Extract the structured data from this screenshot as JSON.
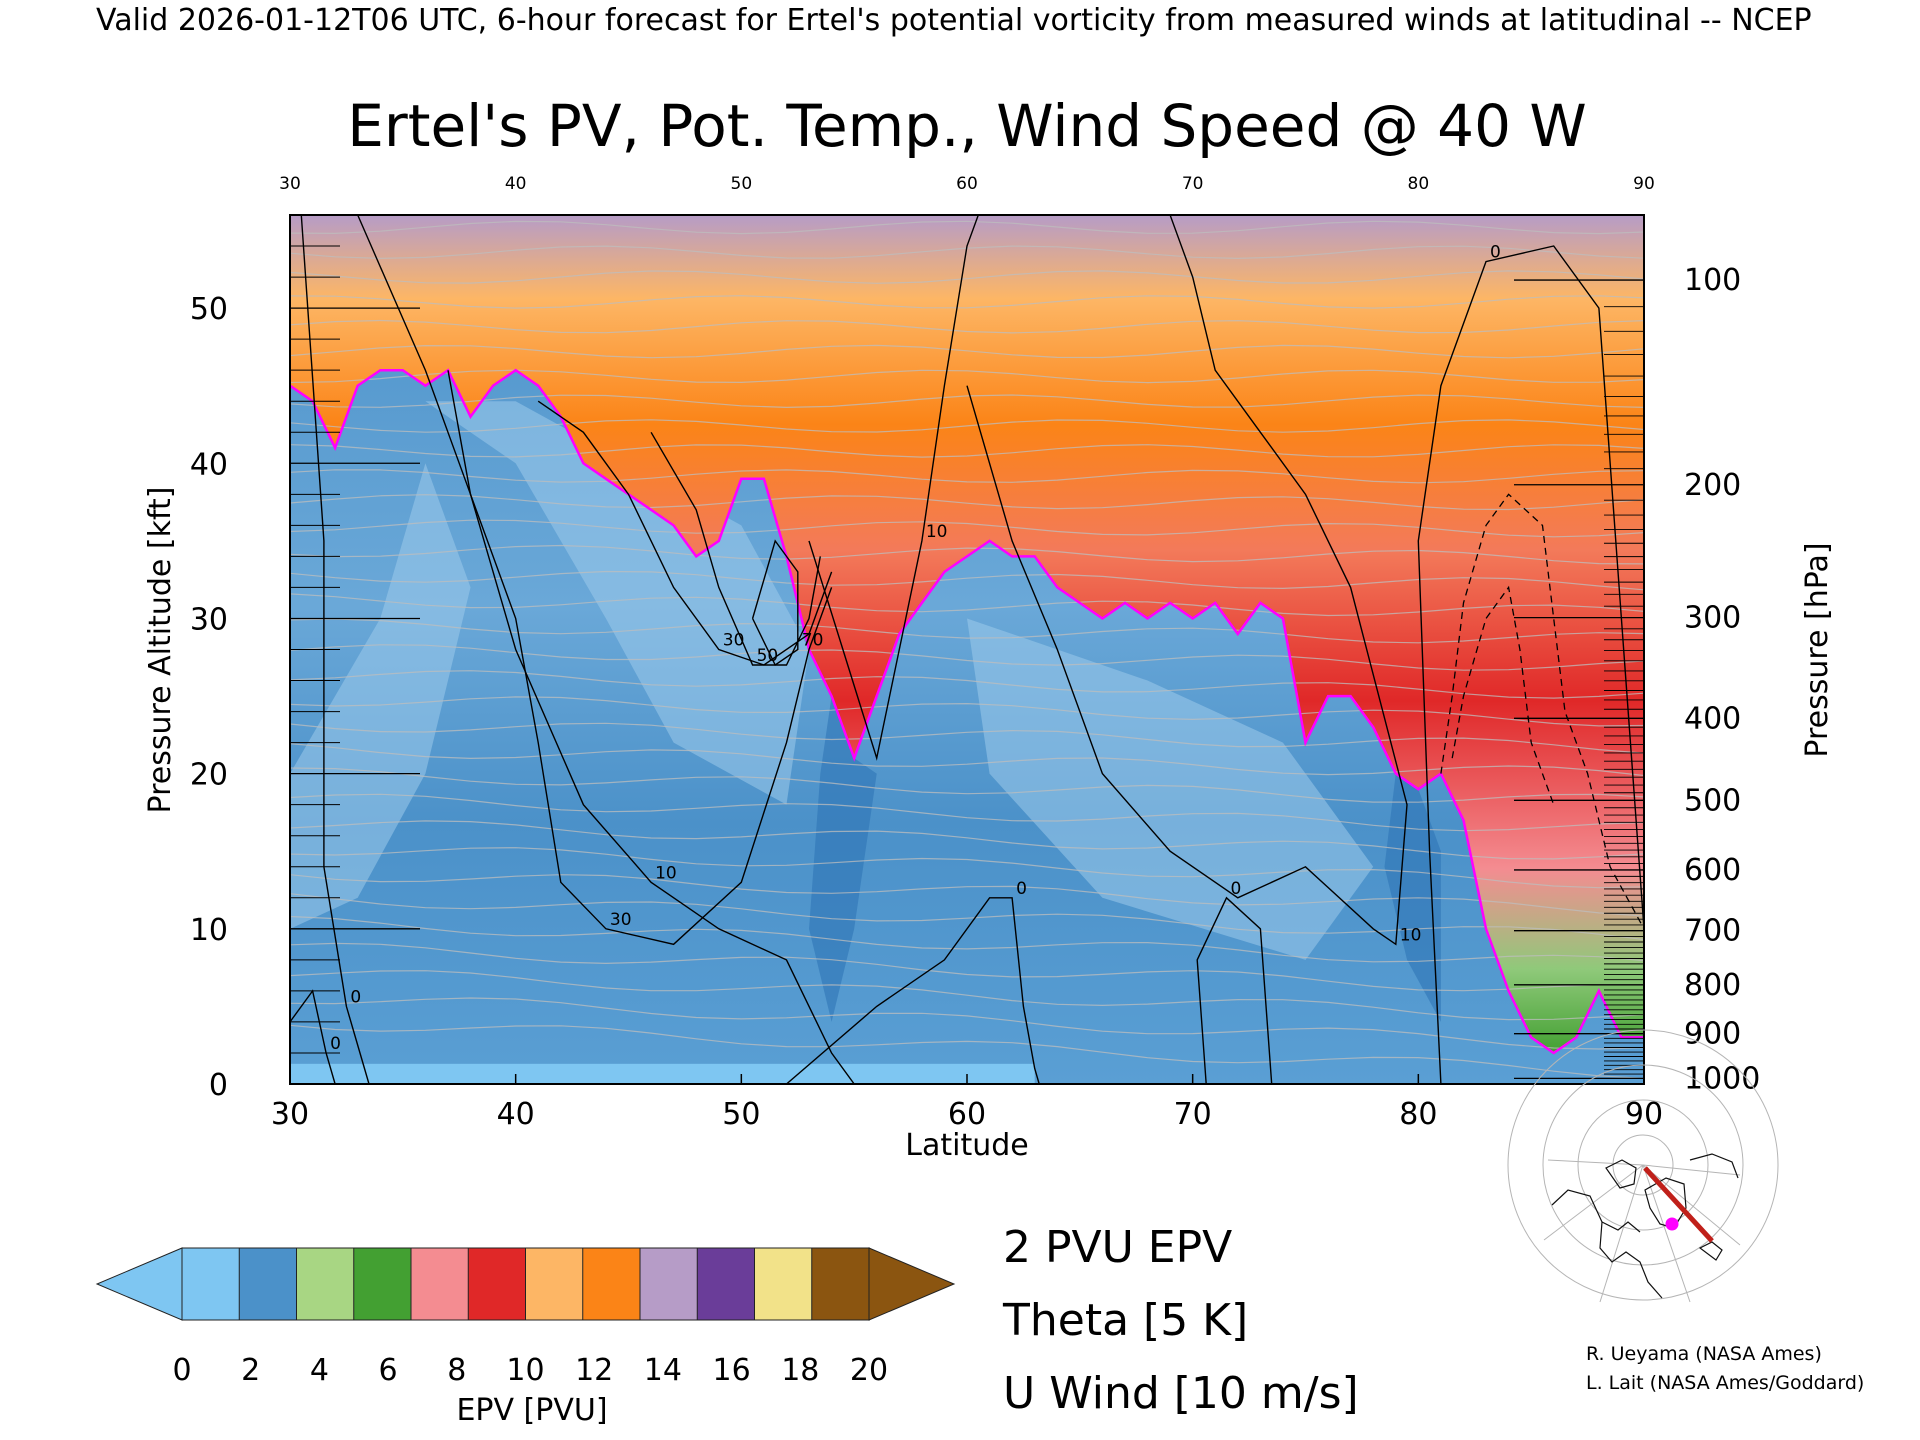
{
  "header": {
    "valid_line": "Valid 2026-01-12T06 UTC, 6-hour forecast for Ertel's potential vorticity from measured winds at latitudinal -- NCEP"
  },
  "chart_data": {
    "type": "heatmap",
    "title": "Ertel's PV, Pot. Temp., Wind Speed @ 40 W",
    "xlabel": "Latitude",
    "ylabel_left": "Pressure Altitude [kft]",
    "ylabel_right": "Pressure [hPa]",
    "xlim": [
      30,
      90
    ],
    "ylim": [
      0,
      56
    ],
    "x_ticks": [
      30,
      40,
      50,
      60,
      70,
      80,
      90
    ],
    "y_ticks": [
      0,
      10,
      20,
      30,
      40,
      50
    ],
    "pressure_ticks": [
      {
        "hPa": 100,
        "label": "100"
      },
      {
        "hPa": 200,
        "label": "200"
      },
      {
        "hPa": 300,
        "label": "300"
      },
      {
        "hPa": 400,
        "label": "400"
      },
      {
        "hPa": 500,
        "label": "500"
      },
      {
        "hPa": 600,
        "label": "600"
      },
      {
        "hPa": 700,
        "label": "700"
      },
      {
        "hPa": 800,
        "label": "800"
      },
      {
        "hPa": 900,
        "label": "900"
      },
      {
        "hPa": 1000,
        "label": "1000"
      }
    ],
    "pv2_boundary_kft": [
      [
        30,
        45
      ],
      [
        31,
        44
      ],
      [
        32,
        41
      ],
      [
        33,
        45
      ],
      [
        34,
        46
      ],
      [
        35,
        46
      ],
      [
        36,
        45
      ],
      [
        37,
        46
      ],
      [
        38,
        43
      ],
      [
        39,
        45
      ],
      [
        40,
        46
      ],
      [
        41,
        45
      ],
      [
        42,
        43
      ],
      [
        43,
        40
      ],
      [
        44,
        39
      ],
      [
        45,
        38
      ],
      [
        46,
        37
      ],
      [
        47,
        36
      ],
      [
        48,
        34
      ],
      [
        49,
        35
      ],
      [
        50,
        39
      ],
      [
        51,
        39
      ],
      [
        52,
        34
      ],
      [
        53,
        28
      ],
      [
        54,
        25
      ],
      [
        55,
        21
      ],
      [
        56,
        25
      ],
      [
        57,
        29
      ],
      [
        58,
        31
      ],
      [
        59,
        33
      ],
      [
        60,
        34
      ],
      [
        61,
        35
      ],
      [
        62,
        34
      ],
      [
        63,
        34
      ],
      [
        64,
        32
      ],
      [
        65,
        31
      ],
      [
        66,
        30
      ],
      [
        67,
        31
      ],
      [
        68,
        30
      ],
      [
        69,
        31
      ],
      [
        70,
        30
      ],
      [
        71,
        31
      ],
      [
        72,
        29
      ],
      [
        73,
        31
      ],
      [
        74,
        30
      ],
      [
        75,
        22
      ],
      [
        76,
        25
      ],
      [
        77,
        25
      ],
      [
        78,
        23
      ],
      [
        79,
        20
      ],
      [
        80,
        19
      ],
      [
        81,
        20
      ],
      [
        82,
        17
      ],
      [
        83,
        10
      ],
      [
        84,
        6
      ],
      [
        85,
        3
      ],
      [
        86,
        2
      ],
      [
        87,
        3
      ],
      [
        88,
        6
      ],
      [
        89,
        3
      ],
      [
        90,
        3
      ]
    ],
    "ertel_pv_colorbar": {
      "label": "EPV [PVU]",
      "ticks": [
        0,
        2,
        4,
        6,
        8,
        10,
        12,
        14,
        16,
        18,
        20
      ],
      "colors": [
        "#7ec6f2",
        "#4b91c9",
        "#a8d683",
        "#43a032",
        "#f48c91",
        "#e02828",
        "#fdb665",
        "#fb8417",
        "#b69cc7",
        "#6a3d99",
        "#f2e289",
        "#8b5510"
      ]
    },
    "u_wind_contours": [
      {
        "label": "0",
        "points": [
          [
            30.5,
            56
          ],
          [
            31.5,
            35
          ],
          [
            31.5,
            14
          ],
          [
            32.5,
            5
          ],
          [
            33.3,
            1
          ],
          [
            33.5,
            0
          ]
        ]
      },
      {
        "label": "0",
        "points": [
          [
            30,
            4
          ],
          [
            31,
            6
          ],
          [
            31.6,
            2
          ],
          [
            32,
            0
          ]
        ]
      },
      {
        "label": "0",
        "points": [
          [
            52,
            0
          ],
          [
            56,
            5
          ],
          [
            59,
            8
          ],
          [
            61,
            12
          ],
          [
            62,
            12
          ],
          [
            62.5,
            5
          ],
          [
            63,
            1
          ],
          [
            63.2,
            0
          ]
        ]
      },
      {
        "label": "0",
        "points": [
          [
            70.6,
            0
          ],
          [
            70.2,
            8
          ],
          [
            71.5,
            12
          ],
          [
            73,
            10
          ],
          [
            73.5,
            0
          ]
        ]
      },
      {
        "label": "0",
        "points": [
          [
            81,
            0
          ],
          [
            80.5,
            15
          ],
          [
            80,
            35
          ],
          [
            81,
            45
          ],
          [
            83,
            53
          ],
          [
            86,
            54
          ],
          [
            88,
            50
          ],
          [
            89,
            30
          ],
          [
            90,
            10
          ]
        ]
      },
      {
        "label": "10",
        "points": [
          [
            33,
            56
          ],
          [
            36,
            46
          ],
          [
            38,
            38
          ],
          [
            40,
            28
          ],
          [
            43,
            18
          ],
          [
            46,
            13
          ],
          [
            49,
            10
          ],
          [
            52,
            8
          ],
          [
            54,
            2
          ],
          [
            55,
            0
          ]
        ]
      },
      {
        "label": "10",
        "points": [
          [
            53,
            35
          ],
          [
            54.5,
            28
          ],
          [
            56,
            21
          ],
          [
            57,
            28
          ],
          [
            58,
            35
          ],
          [
            59,
            45
          ],
          [
            60,
            54
          ],
          [
            60.5,
            56
          ]
        ]
      },
      {
        "label": "10",
        "points": [
          [
            60,
            45
          ],
          [
            62,
            35
          ],
          [
            64,
            28
          ],
          [
            66,
            20
          ],
          [
            69,
            15
          ],
          [
            72,
            12
          ],
          [
            75,
            14
          ],
          [
            78,
            10
          ],
          [
            79,
            9
          ],
          [
            79.5,
            18
          ],
          [
            77,
            32
          ],
          [
            75,
            38
          ],
          [
            73,
            42
          ],
          [
            71,
            46
          ],
          [
            70,
            52
          ],
          [
            69,
            56
          ]
        ]
      },
      {
        "label": "30",
        "points": [
          [
            37,
            46
          ],
          [
            38,
            38
          ],
          [
            40,
            30
          ],
          [
            41,
            22
          ],
          [
            42,
            13
          ],
          [
            44,
            10
          ],
          [
            47,
            9
          ],
          [
            50,
            13
          ],
          [
            52,
            22
          ],
          [
            53,
            28
          ],
          [
            54,
            32
          ]
        ]
      },
      {
        "label": "30",
        "points": [
          [
            41,
            44
          ],
          [
            43,
            42
          ],
          [
            45,
            38
          ],
          [
            47,
            32
          ],
          [
            49,
            28
          ],
          [
            51,
            27
          ],
          [
            53,
            29
          ],
          [
            54,
            33
          ]
        ]
      },
      {
        "label": "50",
        "points": [
          [
            46,
            42
          ],
          [
            48,
            37
          ],
          [
            49,
            32
          ],
          [
            50.5,
            27
          ],
          [
            52,
            27
          ],
          [
            53,
            30
          ],
          [
            53.5,
            34
          ]
        ]
      },
      {
        "label": "70",
        "points": [
          [
            50.5,
            30
          ],
          [
            51.5,
            35
          ],
          [
            52.5,
            33
          ],
          [
            52.5,
            28
          ],
          [
            51.5,
            27
          ],
          [
            50.5,
            30
          ]
        ]
      }
    ],
    "easterly_dashed_contours": [
      [
        [
          81,
          20
        ],
        [
          81.5,
          25
        ],
        [
          82,
          31
        ],
        [
          83,
          36
        ],
        [
          84,
          38
        ],
        [
          85.5,
          36
        ],
        [
          86,
          30
        ],
        [
          86.5,
          24
        ],
        [
          87.5,
          20
        ],
        [
          88.5,
          14
        ],
        [
          90,
          10
        ]
      ],
      [
        [
          81.5,
          21
        ],
        [
          82,
          25
        ],
        [
          83,
          30
        ],
        [
          84,
          32
        ],
        [
          84.5,
          28
        ],
        [
          85,
          22
        ],
        [
          86,
          18
        ]
      ]
    ],
    "legend": {
      "pv2": "2 PVU EPV",
      "theta": "Theta [5 K]",
      "uwind": "U Wind [10 m/s]",
      "pv2_color": "#ff00ff",
      "theta_color": "#9a9a9a",
      "uwind_color": "#000000"
    }
  },
  "credits": {
    "line1": "R. Ueyama (NASA Ames)",
    "line2": "L. Lait (NASA Ames/Goddard)"
  }
}
